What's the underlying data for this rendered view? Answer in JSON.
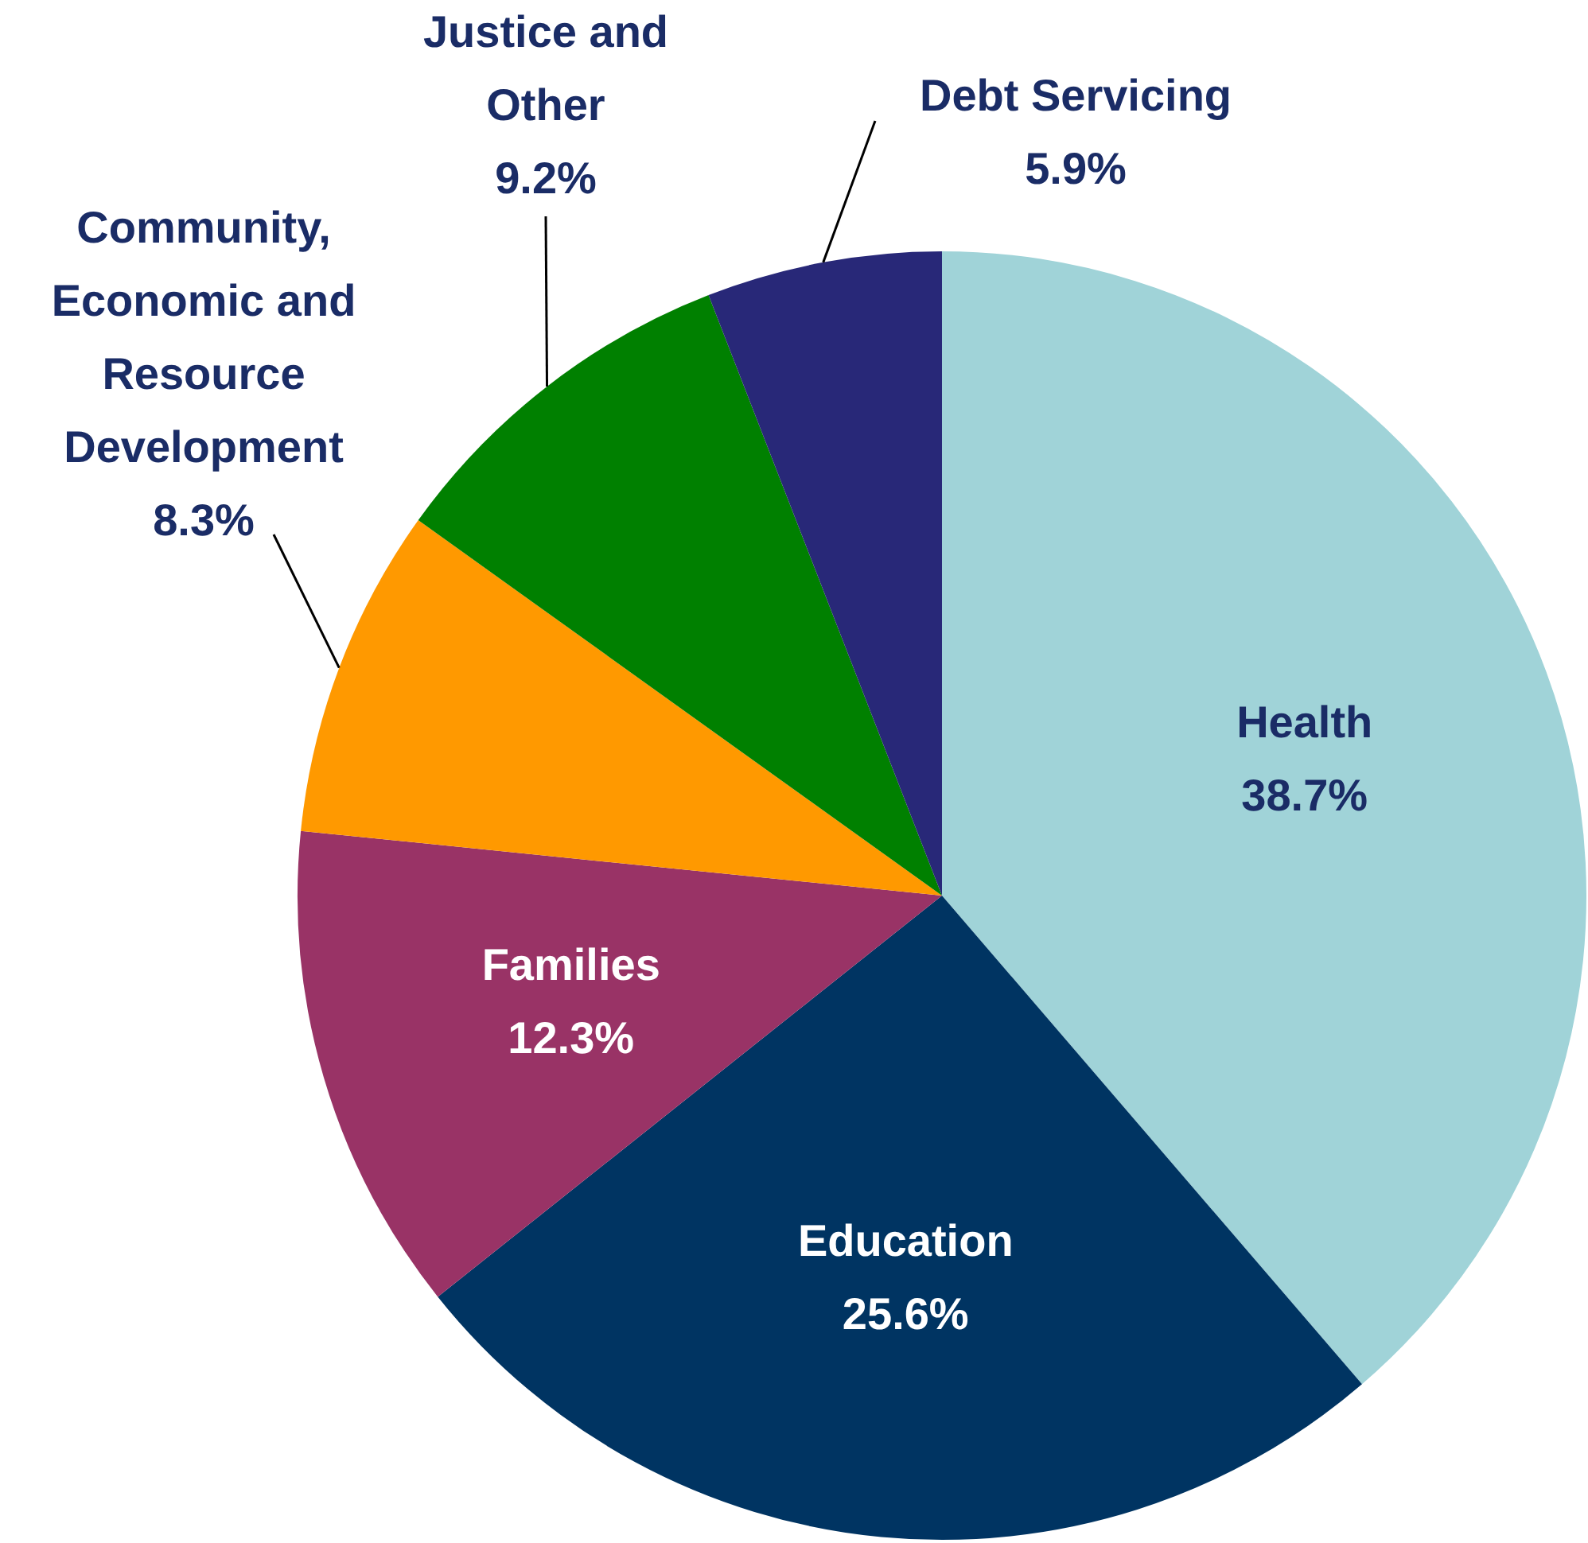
{
  "chart_data": {
    "type": "pie",
    "categories": [
      "Health",
      "Education",
      "Families",
      "Community, Economic and Resource Development",
      "Justice and Other",
      "Debt Servicing"
    ],
    "values": [
      38.7,
      25.6,
      12.3,
      8.3,
      9.2,
      5.9
    ],
    "value_labels": [
      "38.7%",
      "25.6%",
      "12.3%",
      "8.3%",
      "9.2%",
      "5.9%"
    ],
    "colors": [
      "#a0d3d8",
      "#003462",
      "#993366",
      "#ff9900",
      "#008000",
      "#282878"
    ],
    "legend": false
  }
}
